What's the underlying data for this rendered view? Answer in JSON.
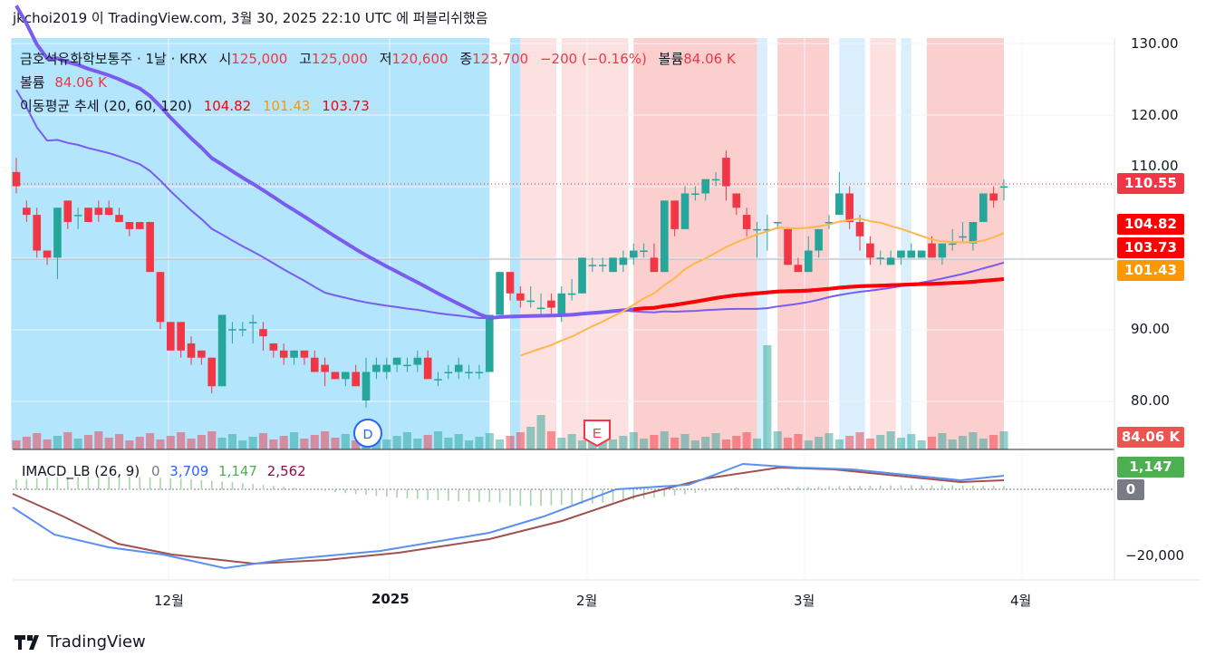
{
  "header": "jkchoi2019 이 TradingView.com, 3월 30, 2025 22:10 UTC 에 퍼블리쉬했음",
  "legend": {
    "symbol": "금호석유화학보통주 · 1날 · KRX",
    "open_label": "시",
    "open": "125,000",
    "high_label": "고",
    "high": "125,000",
    "low_label": "저",
    "low": "120,600",
    "close_label": "종",
    "close": "123,700",
    "change": "−200 (−0.16%)",
    "vol_label": "볼륨",
    "vol": "84.06 K",
    "vol_line_label": "볼륨",
    "vol_line_value": "84.06 K",
    "ma_label": "이동평균 추세 (20, 60, 120)",
    "ma1": "104.82",
    "ma2": "101.43",
    "ma3": "103.73"
  },
  "macd_legend": {
    "label": "IMACD_LB (26, 9)",
    "v0": "0",
    "v1": "3,709",
    "v2": "1,147",
    "v3": "2,562"
  },
  "price_axis": [
    "130.00",
    "120.00",
    "110.00",
    "90.00",
    "80.00"
  ],
  "macd_axis": [
    "−20,000"
  ],
  "time_axis": [
    {
      "label": "12월",
      "bold": false
    },
    {
      "label": "2025",
      "bold": true
    },
    {
      "label": "2월",
      "bold": false
    },
    {
      "label": "3월",
      "bold": false
    },
    {
      "label": "4월",
      "bold": false
    }
  ],
  "price_boxes": [
    {
      "text": "110.55",
      "color": "#f23645"
    },
    {
      "text": "104.82",
      "color": "#ff0000"
    },
    {
      "text": "103.73",
      "color": "#ff0000"
    },
    {
      "text": "101.43",
      "color": "#ff9800"
    },
    {
      "text": "84.06 K",
      "color": "#ef5350"
    },
    {
      "text": "1,147",
      "color": "#4caf50"
    },
    {
      "text": "0",
      "color": "#787b86"
    }
  ],
  "markers": {
    "dividend": "D",
    "earnings": "E"
  },
  "brand": "TradingView",
  "colors": {
    "up": "#26a69a",
    "down": "#f23645",
    "ma20": "#ff0000",
    "ma60": "#ffb74d",
    "ma120": "#7b5cf0",
    "macd": "#5b8ff0",
    "signal": "#a0524f"
  },
  "chart_data": {
    "type": "candlestick",
    "title": "금호석유화학보통주 · 1날 · KRX",
    "ylim": [
      75,
      132
    ],
    "candles_ohlc": [
      [
        112,
        114,
        109,
        110
      ],
      [
        107,
        108,
        105,
        106
      ],
      [
        106,
        107,
        100,
        101
      ],
      [
        101,
        101,
        99,
        100
      ],
      [
        100,
        107,
        97,
        107
      ],
      [
        108,
        108,
        104,
        105
      ],
      [
        106,
        107,
        104,
        106
      ],
      [
        107,
        107,
        105,
        105
      ],
      [
        107,
        108,
        105,
        106
      ],
      [
        107,
        108,
        106,
        106
      ],
      [
        106,
        107,
        105,
        105
      ],
      [
        105,
        105,
        103,
        104
      ],
      [
        105,
        105,
        104,
        104
      ],
      [
        105,
        105,
        101,
        98
      ],
      [
        98,
        98,
        90,
        91
      ],
      [
        91,
        91,
        87,
        87
      ],
      [
        91,
        91,
        86,
        87
      ],
      [
        88,
        89,
        85,
        86
      ],
      [
        87,
        87,
        85,
        86
      ],
      [
        86,
        86,
        81,
        82
      ],
      [
        82,
        92,
        82,
        92
      ],
      [
        90,
        91,
        88,
        90
      ],
      [
        90,
        91,
        89,
        90
      ],
      [
        91,
        92,
        88,
        91
      ],
      [
        90,
        91,
        87,
        89
      ],
      [
        88,
        88,
        86,
        87
      ],
      [
        87,
        88,
        85,
        86
      ],
      [
        86,
        87,
        85,
        87
      ],
      [
        87,
        87,
        85,
        86
      ],
      [
        86,
        87,
        84,
        84
      ],
      [
        85,
        86,
        82,
        84
      ],
      [
        84,
        84,
        83,
        83
      ],
      [
        83,
        84,
        82,
        84
      ],
      [
        84,
        85,
        82,
        82
      ],
      [
        80,
        86,
        79,
        84
      ],
      [
        84,
        86,
        83,
        85
      ],
      [
        84,
        86,
        83,
        85
      ],
      [
        85,
        86,
        84,
        86
      ],
      [
        85,
        86,
        84,
        85
      ],
      [
        85,
        87,
        84,
        86
      ],
      [
        86,
        87,
        83,
        83
      ],
      [
        83,
        84,
        82,
        83
      ],
      [
        84,
        85,
        83,
        84
      ],
      [
        84,
        86,
        83,
        85
      ],
      [
        84,
        85,
        83,
        84
      ],
      [
        84,
        85,
        83,
        84
      ],
      [
        84,
        92,
        84,
        92
      ],
      [
        92,
        98,
        92,
        98
      ],
      [
        98,
        98,
        94,
        95
      ],
      [
        95,
        96,
        93,
        94
      ],
      [
        94,
        96,
        93,
        94
      ],
      [
        93,
        95,
        92,
        93
      ],
      [
        94,
        95,
        92,
        93
      ],
      [
        92,
        96,
        91,
        95
      ],
      [
        95,
        97,
        94,
        95
      ],
      [
        95,
        100,
        95,
        100
      ],
      [
        99,
        100,
        98,
        99
      ],
      [
        99,
        100,
        98,
        99
      ],
      [
        98,
        100,
        98,
        100
      ],
      [
        99,
        101,
        98,
        100
      ],
      [
        100,
        102,
        99,
        101
      ],
      [
        101,
        102,
        100,
        101
      ],
      [
        100,
        102,
        98,
        98
      ],
      [
        98,
        108,
        98,
        108
      ],
      [
        108,
        108,
        103,
        104
      ],
      [
        104,
        110,
        104,
        109
      ],
      [
        109,
        110,
        108,
        109
      ],
      [
        109,
        111,
        108,
        111
      ],
      [
        111,
        112,
        110,
        111
      ],
      [
        114,
        115,
        108,
        110
      ],
      [
        109,
        109,
        106,
        107
      ],
      [
        106,
        107,
        103,
        104
      ],
      [
        104,
        105,
        100,
        104
      ],
      [
        104,
        106,
        101,
        104
      ],
      [
        105,
        105,
        104,
        105
      ],
      [
        104,
        104,
        99,
        99
      ],
      [
        99,
        100,
        98,
        98
      ],
      [
        98,
        103,
        98,
        101
      ],
      [
        101,
        104,
        100,
        104
      ],
      [
        105,
        106,
        104,
        105
      ],
      [
        106,
        112,
        106,
        109
      ],
      [
        109,
        110,
        104,
        105
      ],
      [
        105,
        106,
        101,
        103
      ],
      [
        102,
        103,
        99,
        100
      ],
      [
        100,
        101,
        99,
        100
      ],
      [
        99,
        101,
        99,
        100
      ],
      [
        100,
        101,
        99,
        101
      ],
      [
        100,
        102,
        100,
        101
      ],
      [
        100,
        101,
        100,
        101
      ],
      [
        102,
        103,
        100,
        100
      ],
      [
        100,
        102,
        99,
        102
      ],
      [
        102,
        104,
        101,
        102
      ],
      [
        103,
        105,
        102,
        103
      ],
      [
        102,
        105,
        101,
        105
      ],
      [
        105,
        109,
        105,
        109
      ],
      [
        109,
        110,
        107,
        108
      ],
      [
        110,
        111,
        108,
        110
      ]
    ],
    "ma_series": [
      {
        "name": "20",
        "period": 20
      },
      {
        "name": "60",
        "period": 60
      },
      {
        "name": "120",
        "period": 120
      }
    ],
    "volume_last": "84.06K",
    "macd": {
      "label": "IMACD_LB (26, 9)",
      "macd_last": 3709,
      "histogram_last": 1147,
      "signal_last": 2562
    }
  }
}
